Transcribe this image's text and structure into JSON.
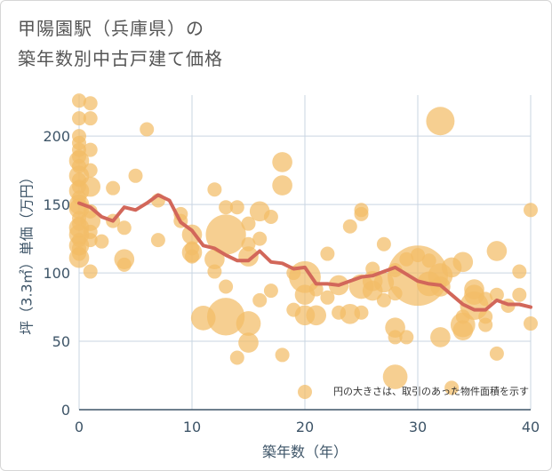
{
  "title": {
    "line1": "甲陽園駅（兵庫県）の",
    "line2": "築年数別中古戸建て価格"
  },
  "colors": {
    "bubble_fill": "#f2bd66",
    "bubble_opacity": 0.72,
    "line": "#d2675a",
    "grid": "#c9d5e2",
    "axis": "#3e5568"
  },
  "chart_data": {
    "type": "scatter",
    "title": "甲陽園駅（兵庫県）の築年数別中古戸建て価格",
    "xlabel": "築年数（年）",
    "ylabel": "坪（3.3㎡）単価（万円）",
    "xlim": [
      0,
      40
    ],
    "ylim": [
      0,
      230
    ],
    "xticks": [
      "0",
      "10",
      "20",
      "30",
      "40"
    ],
    "yticks": [
      "0",
      "50",
      "100",
      "150",
      "200"
    ],
    "annotation": "円の大きさは、取引のあった物件面積を示す",
    "bubbles": [
      {
        "x": 0,
        "y": 226,
        "s": 1
      },
      {
        "x": 0,
        "y": 213,
        "s": 1
      },
      {
        "x": 0,
        "y": 200,
        "s": 1
      },
      {
        "x": 0,
        "y": 195,
        "s": 1
      },
      {
        "x": 0,
        "y": 190,
        "s": 1
      },
      {
        "x": 0,
        "y": 185,
        "s": 1
      },
      {
        "x": 0,
        "y": 182,
        "s": 2
      },
      {
        "x": 0,
        "y": 178,
        "s": 1
      },
      {
        "x": 0,
        "y": 171,
        "s": 2
      },
      {
        "x": 0,
        "y": 168,
        "s": 1
      },
      {
        "x": 0,
        "y": 163,
        "s": 1
      },
      {
        "x": 0,
        "y": 160,
        "s": 2
      },
      {
        "x": 0,
        "y": 155,
        "s": 1
      },
      {
        "x": 0,
        "y": 150,
        "s": 2
      },
      {
        "x": 0,
        "y": 147,
        "s": 2
      },
      {
        "x": 0,
        "y": 140,
        "s": 1
      },
      {
        "x": 0,
        "y": 136,
        "s": 1
      },
      {
        "x": 0,
        "y": 133,
        "s": 2
      },
      {
        "x": 0,
        "y": 128,
        "s": 2
      },
      {
        "x": 0,
        "y": 124,
        "s": 1
      },
      {
        "x": 0,
        "y": 120,
        "s": 2
      },
      {
        "x": 0,
        "y": 118,
        "s": 1
      },
      {
        "x": 0,
        "y": 114,
        "s": 1
      },
      {
        "x": 0,
        "y": 111,
        "s": 2
      },
      {
        "x": 1,
        "y": 224,
        "s": 1
      },
      {
        "x": 1,
        "y": 213,
        "s": 1
      },
      {
        "x": 1,
        "y": 190,
        "s": 1
      },
      {
        "x": 1,
        "y": 175,
        "s": 1
      },
      {
        "x": 1,
        "y": 163,
        "s": 2
      },
      {
        "x": 1,
        "y": 145,
        "s": 1
      },
      {
        "x": 1,
        "y": 138,
        "s": 2
      },
      {
        "x": 1,
        "y": 130,
        "s": 1
      },
      {
        "x": 1,
        "y": 124,
        "s": 1
      },
      {
        "x": 1,
        "y": 101,
        "s": 1
      },
      {
        "x": 2,
        "y": 123,
        "s": 1
      },
      {
        "x": 3,
        "y": 162,
        "s": 1
      },
      {
        "x": 3,
        "y": 138,
        "s": 1
      },
      {
        "x": 4,
        "y": 133,
        "s": 1
      },
      {
        "x": 4,
        "y": 110,
        "s": 2
      },
      {
        "x": 4,
        "y": 106,
        "s": 1
      },
      {
        "x": 5,
        "y": 171,
        "s": 1
      },
      {
        "x": 6,
        "y": 205,
        "s": 1
      },
      {
        "x": 7,
        "y": 124,
        "s": 1
      },
      {
        "x": 7,
        "y": 153,
        "s": 1
      },
      {
        "x": 9,
        "y": 143,
        "s": 1
      },
      {
        "x": 9,
        "y": 138,
        "s": 1
      },
      {
        "x": 10,
        "y": 128,
        "s": 2
      },
      {
        "x": 10,
        "y": 118,
        "s": 1
      },
      {
        "x": 10,
        "y": 115,
        "s": 2
      },
      {
        "x": 10,
        "y": 112,
        "s": 1
      },
      {
        "x": 12,
        "y": 161,
        "s": 1
      },
      {
        "x": 12,
        "y": 110,
        "s": 2
      },
      {
        "x": 12,
        "y": 101,
        "s": 1
      },
      {
        "x": 11,
        "y": 67,
        "s": 3
      },
      {
        "x": 13,
        "y": 148,
        "s": 1
      },
      {
        "x": 13,
        "y": 128,
        "s": 8
      },
      {
        "x": 13,
        "y": 90,
        "s": 1
      },
      {
        "x": 13,
        "y": 68,
        "s": 7
      },
      {
        "x": 14,
        "y": 148,
        "s": 1
      },
      {
        "x": 14,
        "y": 38,
        "s": 1
      },
      {
        "x": 15,
        "y": 136,
        "s": 1
      },
      {
        "x": 15,
        "y": 121,
        "s": 1
      },
      {
        "x": 15,
        "y": 112,
        "s": 2
      },
      {
        "x": 15,
        "y": 63,
        "s": 3
      },
      {
        "x": 15,
        "y": 49,
        "s": 2
      },
      {
        "x": 16,
        "y": 145,
        "s": 2
      },
      {
        "x": 16,
        "y": 125,
        "s": 1
      },
      {
        "x": 16,
        "y": 80,
        "s": 1
      },
      {
        "x": 17,
        "y": 141,
        "s": 1
      },
      {
        "x": 17,
        "y": 87,
        "s": 1
      },
      {
        "x": 18,
        "y": 181,
        "s": 2
      },
      {
        "x": 18,
        "y": 164,
        "s": 2
      },
      {
        "x": 18,
        "y": 40,
        "s": 1
      },
      {
        "x": 19,
        "y": 100,
        "s": 1
      },
      {
        "x": 19,
        "y": 73,
        "s": 1
      },
      {
        "x": 20,
        "y": 97,
        "s": 5
      },
      {
        "x": 20,
        "y": 84,
        "s": 2
      },
      {
        "x": 20,
        "y": 69,
        "s": 2
      },
      {
        "x": 20,
        "y": 13,
        "s": 1
      },
      {
        "x": 21,
        "y": 88,
        "s": 1
      },
      {
        "x": 21,
        "y": 69,
        "s": 2
      },
      {
        "x": 22,
        "y": 114,
        "s": 1
      },
      {
        "x": 22,
        "y": 82,
        "s": 1
      },
      {
        "x": 23,
        "y": 91,
        "s": 2
      },
      {
        "x": 23,
        "y": 71,
        "s": 1
      },
      {
        "x": 24,
        "y": 134,
        "s": 1
      },
      {
        "x": 24,
        "y": 70,
        "s": 2
      },
      {
        "x": 25,
        "y": 146,
        "s": 1
      },
      {
        "x": 25,
        "y": 143,
        "s": 1
      },
      {
        "x": 25,
        "y": 90,
        "s": 3
      },
      {
        "x": 25,
        "y": 71,
        "s": 1
      },
      {
        "x": 26,
        "y": 103,
        "s": 1
      },
      {
        "x": 26,
        "y": 94,
        "s": 2
      },
      {
        "x": 26,
        "y": 87,
        "s": 2
      },
      {
        "x": 27,
        "y": 121,
        "s": 1
      },
      {
        "x": 27,
        "y": 93,
        "s": 2
      },
      {
        "x": 27,
        "y": 80,
        "s": 1
      },
      {
        "x": 28,
        "y": 102,
        "s": 1
      },
      {
        "x": 28,
        "y": 85,
        "s": 1
      },
      {
        "x": 28,
        "y": 60,
        "s": 2
      },
      {
        "x": 28,
        "y": 53,
        "s": 1
      },
      {
        "x": 28,
        "y": 24,
        "s": 3
      },
      {
        "x": 29,
        "y": 110,
        "s": 1
      },
      {
        "x": 29,
        "y": 53,
        "s": 1
      },
      {
        "x": 30,
        "y": 113,
        "s": 1
      },
      {
        "x": 30,
        "y": 98,
        "s": 18
      },
      {
        "x": 31,
        "y": 109,
        "s": 1
      },
      {
        "x": 31,
        "y": 92,
        "s": 3
      },
      {
        "x": 32,
        "y": 211,
        "s": 4
      },
      {
        "x": 32,
        "y": 98,
        "s": 3
      },
      {
        "x": 32,
        "y": 90,
        "s": 2
      },
      {
        "x": 32,
        "y": 53,
        "s": 2
      },
      {
        "x": 33,
        "y": 104,
        "s": 2
      },
      {
        "x": 33,
        "y": 16,
        "s": 1
      },
      {
        "x": 34,
        "y": 108,
        "s": 2
      },
      {
        "x": 34,
        "y": 68,
        "s": 1
      },
      {
        "x": 34,
        "y": 62,
        "s": 3
      },
      {
        "x": 34,
        "y": 58,
        "s": 2
      },
      {
        "x": 35,
        "y": 88,
        "s": 2
      },
      {
        "x": 35,
        "y": 84,
        "s": 2
      },
      {
        "x": 35,
        "y": 76,
        "s": 4
      },
      {
        "x": 36,
        "y": 81,
        "s": 1
      },
      {
        "x": 36,
        "y": 68,
        "s": 1
      },
      {
        "x": 36,
        "y": 62,
        "s": 1
      },
      {
        "x": 37,
        "y": 116,
        "s": 2
      },
      {
        "x": 37,
        "y": 84,
        "s": 1
      },
      {
        "x": 37,
        "y": 41,
        "s": 1
      },
      {
        "x": 38,
        "y": 76,
        "s": 1
      },
      {
        "x": 39,
        "y": 101,
        "s": 1
      },
      {
        "x": 39,
        "y": 84,
        "s": 1
      },
      {
        "x": 40,
        "y": 146,
        "s": 1
      },
      {
        "x": 40,
        "y": 63,
        "s": 1
      }
    ],
    "trend_line": {
      "x": [
        0,
        1,
        2,
        3,
        4,
        5,
        6,
        7,
        8,
        9,
        10,
        11,
        12,
        13,
        14,
        15,
        16,
        17,
        18,
        19,
        20,
        21,
        22,
        23,
        24,
        25,
        26,
        27,
        28,
        29,
        30,
        31,
        32,
        33,
        34,
        35,
        36,
        37,
        38,
        39,
        40
      ],
      "y": [
        151,
        148,
        141,
        138,
        148,
        146,
        151,
        157,
        153,
        137,
        131,
        120,
        118,
        113,
        109,
        109,
        116,
        108,
        107,
        103,
        104,
        92,
        92,
        91,
        94,
        97,
        98,
        101,
        104,
        99,
        94,
        92,
        91,
        84,
        77,
        73,
        73,
        80,
        77,
        77,
        75
      ]
    }
  }
}
